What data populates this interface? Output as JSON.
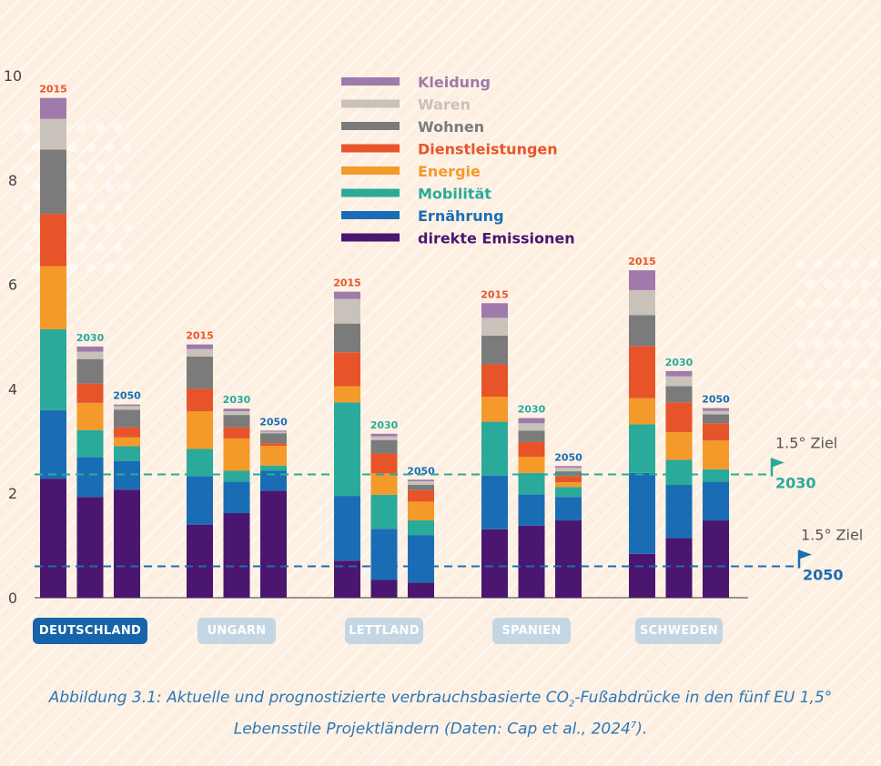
{
  "chart_data": {
    "type": "stacked_bar",
    "ylim": [
      0,
      10
    ],
    "yticks": [
      0,
      2,
      4,
      6,
      8,
      10
    ],
    "categories_legend_order": [
      "Kleidung",
      "Waren",
      "Wohnen",
      "Dienstleistungen",
      "Energie",
      "Mobilität",
      "Ernährung",
      "direkte Emissionen"
    ],
    "series": [
      {
        "name": "direkte Emissionen",
        "color": "#4a1670"
      },
      {
        "name": "Ernährung",
        "color": "#1a6db5"
      },
      {
        "name": "Mobilität",
        "color": "#2aaa9a"
      },
      {
        "name": "Energie",
        "color": "#f39a2b"
      },
      {
        "name": "Dienstleistungen",
        "color": "#e8542a"
      },
      {
        "name": "Wohnen",
        "color": "#7b7b7b"
      },
      {
        "name": "Waren",
        "color": "#c9c2bb"
      },
      {
        "name": "Kleidung",
        "color": "#a07aaa"
      }
    ],
    "groups": [
      {
        "country": "DEUTSCHLAND",
        "active": true,
        "bars": [
          {
            "year": "2015",
            "year_color": "#e8542a",
            "values": [
              2.28,
              1.31,
              1.55,
              1.21,
              1.0,
              1.23,
              0.59,
              0.4
            ]
          },
          {
            "year": "2030",
            "year_color": "#2aaa9a",
            "values": [
              1.93,
              0.76,
              0.52,
              0.52,
              0.37,
              0.47,
              0.14,
              0.1
            ]
          },
          {
            "year": "2050",
            "year_color": "#1a6db5",
            "values": [
              2.07,
              0.55,
              0.28,
              0.17,
              0.19,
              0.34,
              0.07,
              0.03
            ]
          }
        ]
      },
      {
        "country": "UNGARN",
        "active": false,
        "bars": [
          {
            "year": "2015",
            "year_color": "#e8542a",
            "values": [
              1.4,
              0.93,
              0.52,
              0.72,
              0.43,
              0.62,
              0.14,
              0.09
            ]
          },
          {
            "year": "2030",
            "year_color": "#2aaa9a",
            "values": [
              1.62,
              0.6,
              0.21,
              0.62,
              0.21,
              0.24,
              0.07,
              0.05
            ]
          },
          {
            "year": "2050",
            "year_color": "#1a6db5",
            "values": [
              2.05,
              0.38,
              0.1,
              0.38,
              0.05,
              0.19,
              0.03,
              0.02
            ]
          }
        ]
      },
      {
        "country": "LETTLAND",
        "active": false,
        "bars": [
          {
            "year": "2015",
            "year_color": "#e8542a",
            "values": [
              0.71,
              1.24,
              1.79,
              0.31,
              0.65,
              0.55,
              0.47,
              0.14
            ]
          },
          {
            "year": "2030",
            "year_color": "#2aaa9a",
            "values": [
              0.34,
              0.98,
              0.65,
              0.41,
              0.38,
              0.26,
              0.07,
              0.05
            ]
          },
          {
            "year": "2050",
            "year_color": "#1a6db5",
            "values": [
              0.29,
              0.91,
              0.28,
              0.36,
              0.22,
              0.1,
              0.07,
              0.03
            ]
          }
        ]
      },
      {
        "country": "SPANIEN",
        "active": false,
        "bars": [
          {
            "year": "2015",
            "year_color": "#e8542a",
            "values": [
              1.31,
              1.03,
              1.03,
              0.48,
              0.62,
              0.55,
              0.34,
              0.28
            ]
          },
          {
            "year": "2030",
            "year_color": "#2aaa9a",
            "values": [
              1.38,
              0.6,
              0.41,
              0.31,
              0.28,
              0.22,
              0.14,
              0.1
            ]
          },
          {
            "year": "2050",
            "year_color": "#1a6db5",
            "values": [
              1.48,
              0.45,
              0.19,
              0.09,
              0.12,
              0.09,
              0.07,
              0.03
            ]
          }
        ]
      },
      {
        "country": "SCHWEDEN",
        "active": false,
        "bars": [
          {
            "year": "2015",
            "year_color": "#e8542a",
            "values": [
              0.84,
              1.55,
              0.93,
              0.5,
              1.0,
              0.59,
              0.48,
              0.38
            ]
          },
          {
            "year": "2030",
            "year_color": "#2aaa9a",
            "values": [
              1.14,
              1.02,
              0.48,
              0.53,
              0.57,
              0.31,
              0.19,
              0.1
            ]
          },
          {
            "year": "2050",
            "year_color": "#1a6db5",
            "values": [
              1.48,
              0.74,
              0.24,
              0.55,
              0.33,
              0.17,
              0.07,
              0.05
            ]
          }
        ]
      }
    ],
    "targets": [
      {
        "label": "1.5° Ziel",
        "year": "2030",
        "value": 2.36,
        "color": "#2aaa9a"
      },
      {
        "label": "1.5° Ziel",
        "year": "2050",
        "value": 0.6,
        "color": "#1a6db5"
      }
    ]
  },
  "caption": {
    "line1_a": "Abbildung 3.1: Aktuelle und prognostizierte verbrauchsbasierte CO",
    "line1_sub": "2",
    "line1_b": "-Fußabdrücke in den fünf EU 1,5°",
    "line2_a": "Lebensstile Projektländern (Daten: Cap et al., 2024",
    "line2_sup": "7",
    "line2_b": ")."
  }
}
